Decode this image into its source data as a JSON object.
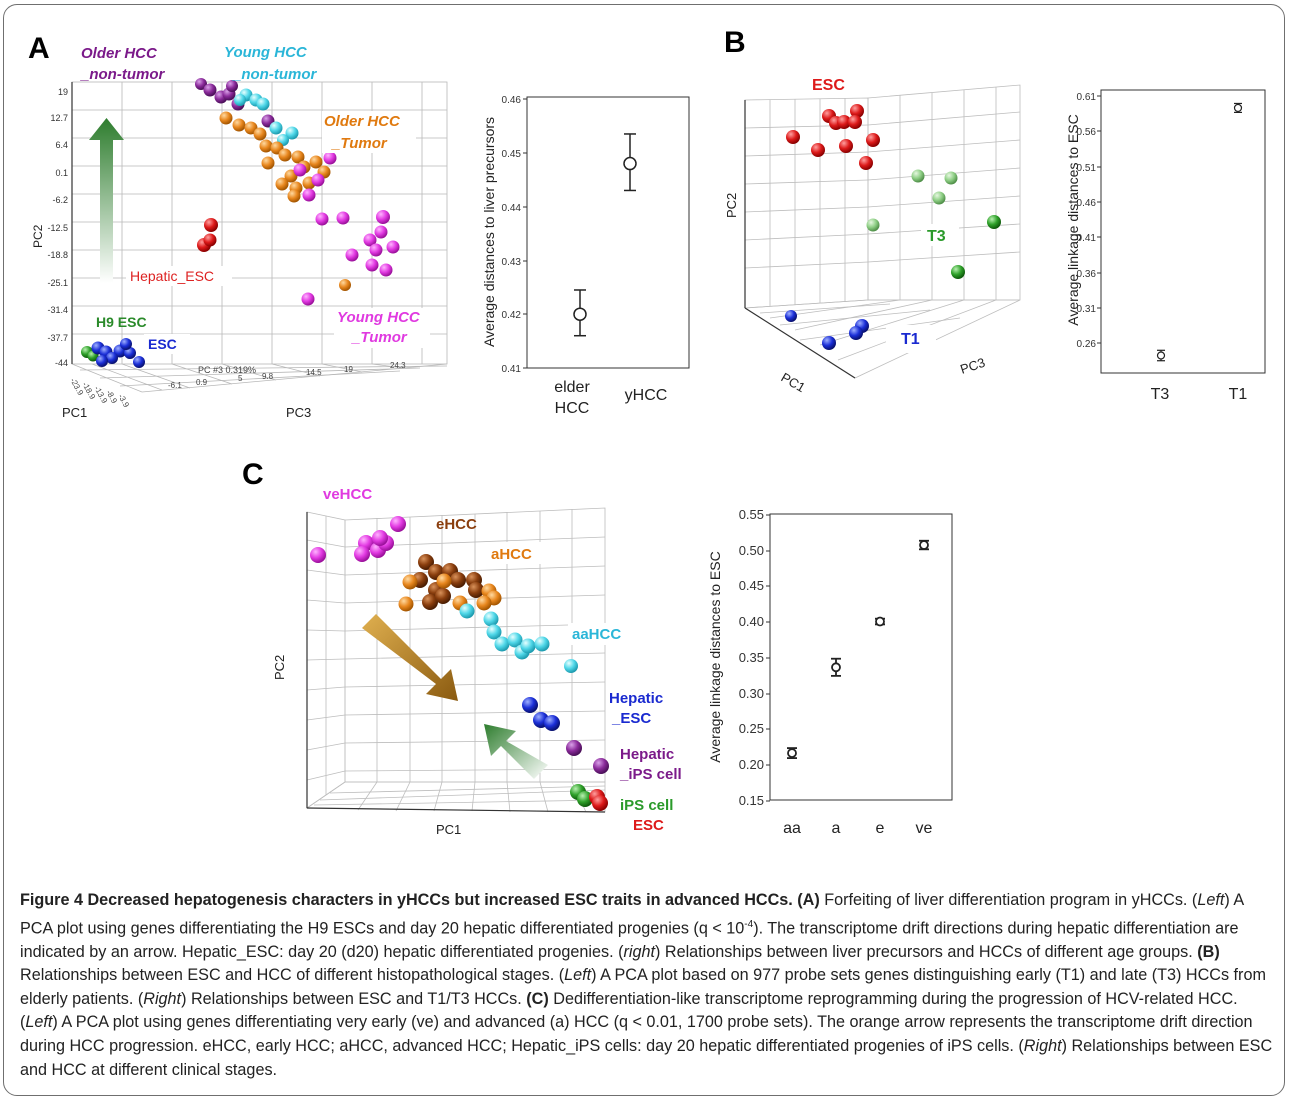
{
  "panelA": {
    "letter": "A",
    "pca": {
      "axes": {
        "pc1": "PC1",
        "pc2": "PC2",
        "pc3": "PC3",
        "pc3_inline": "PC #3 0.319%"
      },
      "yticks": [
        "19",
        "12.7",
        "6.4",
        "0.1",
        "-6.2",
        "-12.5",
        "-18.8",
        "-25.1",
        "-31.4",
        "-37.7",
        "-44"
      ],
      "pc1ticks": [
        "-23.9",
        "-18.9",
        "-13.9",
        "-8.9",
        "-3.9"
      ],
      "pc3ticks": [
        "-6.1",
        "0.9",
        "5",
        "9.8",
        "14.5",
        "19",
        "24.3"
      ],
      "groups": {
        "older_nontumor": [
          "Older HCC",
          "_non-tumor"
        ],
        "young_nontumor": [
          "Young HCC",
          "_non-tumor"
        ],
        "older_tumor": [
          "Older HCC",
          "_Tumor"
        ],
        "young_tumor": [
          "Young HCC",
          "_Tumor"
        ],
        "hepatic_esc": "Hepatic_ESC",
        "h9_esc": "H9 ESC",
        "esc": "ESC"
      }
    },
    "errorplot": {
      "ylabel": "Average distances to liver precursors",
      "yticks": [
        "0.46",
        "0.45",
        "0.44",
        "0.43",
        "0.42",
        "0.41"
      ],
      "xcats": [
        [
          "elder",
          "HCC"
        ],
        [
          "yHCC"
        ]
      ]
    }
  },
  "panelB": {
    "letter": "B",
    "pca": {
      "axes": {
        "pc1": "PC1",
        "pc2": "PC2",
        "pc3": "PC3"
      },
      "groups": {
        "esc": "ESC",
        "t3": "T3",
        "t1": "T1"
      }
    },
    "errorplot": {
      "ylabel": "Average linkage distances to ESC",
      "yticks": [
        "0.61",
        "0.56",
        "0.51",
        "0.46",
        "0.41",
        "0.36",
        "0.31",
        "0.26"
      ],
      "xcats": [
        "T3",
        "T1"
      ]
    }
  },
  "panelC": {
    "letter": "C",
    "pca": {
      "axes": {
        "pc1": "PC1",
        "pc2": "PC2"
      },
      "groups": {
        "vehcc": "veHCC",
        "ehcc": "eHCC",
        "ahcc": "aHCC",
        "aahcc": "aaHCC",
        "hepatic_esc": [
          "Hepatic",
          "_ESC"
        ],
        "hepatic_ips": [
          "Hepatic",
          "_iPS cell"
        ],
        "ips": "iPS cell",
        "esc": "ESC"
      }
    },
    "errorplot": {
      "ylabel": "Average linkage distances to ESC",
      "yticks": [
        "0.55",
        "0.50",
        "0.45",
        "0.40",
        "0.35",
        "0.30",
        "0.25",
        "0.20",
        "0.15"
      ],
      "xcats": [
        "aa",
        "a",
        "e",
        "ve"
      ]
    }
  },
  "chart_data": [
    {
      "type": "scatter",
      "panel": "A-right",
      "ylabel": "Average distances to liver precursors",
      "categories": [
        "elder HCC",
        "yHCC"
      ],
      "values": [
        0.42,
        0.448
      ],
      "error_low": [
        0.416,
        0.443
      ],
      "error_high": [
        0.4245,
        0.4535
      ],
      "ylim": [
        0.41,
        0.46
      ]
    },
    {
      "type": "scatter",
      "panel": "B-right",
      "ylabel": "Average linkage distances to ESC",
      "categories": [
        "T3",
        "T1"
      ],
      "values": [
        0.262,
        0.594
      ],
      "error_low": [
        0.255,
        0.588
      ],
      "error_high": [
        0.269,
        0.6
      ],
      "ylim": [
        0.245,
        0.615
      ]
    },
    {
      "type": "scatter",
      "panel": "C-right",
      "ylabel": "Average linkage distances to ESC",
      "categories": [
        "aa",
        "a",
        "e",
        "ve"
      ],
      "values": [
        0.217,
        0.337,
        0.401,
        0.508
      ],
      "error_low": [
        0.21,
        0.325,
        0.397,
        0.502
      ],
      "error_high": [
        0.224,
        0.349,
        0.405,
        0.514
      ],
      "ylim": [
        0.15,
        0.55
      ]
    }
  ],
  "caption": {
    "title": "Figure 4 Decreased hepatogenesis characters in yHCCs but increased ESC traits in advanced HCCs.",
    "a_label": "(A)",
    "a_text": " Forfeiting of liver differentiation program in yHCCs. (",
    "left": "Left",
    "a_text2": ") A PCA plot using genes differentiating the H9 ESCs and day 20 hepatic differentiated progenies (q < 10",
    "a_sup": "-4",
    "a_text3": "). The transcriptome drift directions during hepatic differentiation are indicated by an arrow. Hepatic_ESC: day 20 (d20) hepatic differentiated progenies. (",
    "right_lower": "right",
    "a_text4": ") Relationships between liver precursors and HCCs of different age groups. ",
    "b_label": "(B)",
    "b_text": " Relationships between ESC and HCC of different histopathological stages. (",
    "left2": "Left",
    "b_text2": ") A PCA plot based on 977 probe sets genes distinguishing early (T1) and late (T3) HCCs from elderly patients. (",
    "right2": "Right",
    "b_text3": ") Relationships between ESC and T1/T3 HCCs. ",
    "c_label": "(C)",
    "c_text": " Dedifferentiation-like transcriptome reprogramming during the progression of HCV-related HCC. (",
    "left3": "Left",
    "c_text2": ") A PCA plot using genes differentiating very early (ve) and advanced (a) HCC (q < 0.01, 1700 probe sets). The orange arrow represents the transcriptome drift direction during HCC progression. eHCC, early HCC; aHCC, advanced HCC; Hepatic_iPS cells: day 20 hepatic differentiated progenies of iPS cells. (",
    "right3": "Right",
    "c_text3": ") Relationships between ESC and HCC at different clinical stages."
  }
}
